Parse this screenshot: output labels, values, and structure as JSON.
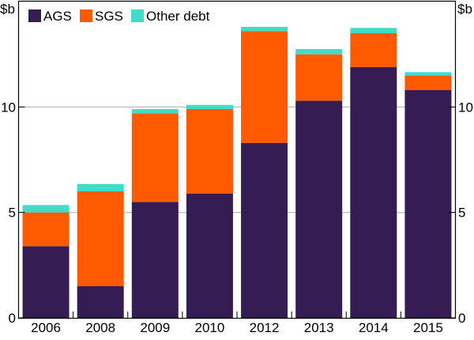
{
  "chart_data": {
    "type": "bar",
    "stacked": true,
    "title": "",
    "xlabel": "",
    "ylabel": "$b",
    "ylabel_right": "$b",
    "ylim": [
      0,
      15
    ],
    "yticks": [
      0,
      5,
      10
    ],
    "grid": true,
    "legend_position": "top-left",
    "categories": [
      "2006",
      "2008",
      "2009",
      "2010",
      "2012",
      "2013",
      "2014",
      "2015"
    ],
    "series": [
      {
        "name": "AGS",
        "color": "#351c53",
        "values": [
          3.4,
          1.5,
          5.5,
          5.9,
          8.3,
          10.3,
          11.9,
          10.8
        ]
      },
      {
        "name": "SGS",
        "color": "#ff5a00",
        "values": [
          1.6,
          4.5,
          4.2,
          4.0,
          5.3,
          2.2,
          1.6,
          0.7
        ]
      },
      {
        "name": "Other debt",
        "color": "#40dcc8",
        "values": [
          0.35,
          0.35,
          0.2,
          0.2,
          0.2,
          0.25,
          0.25,
          0.15
        ]
      }
    ]
  }
}
